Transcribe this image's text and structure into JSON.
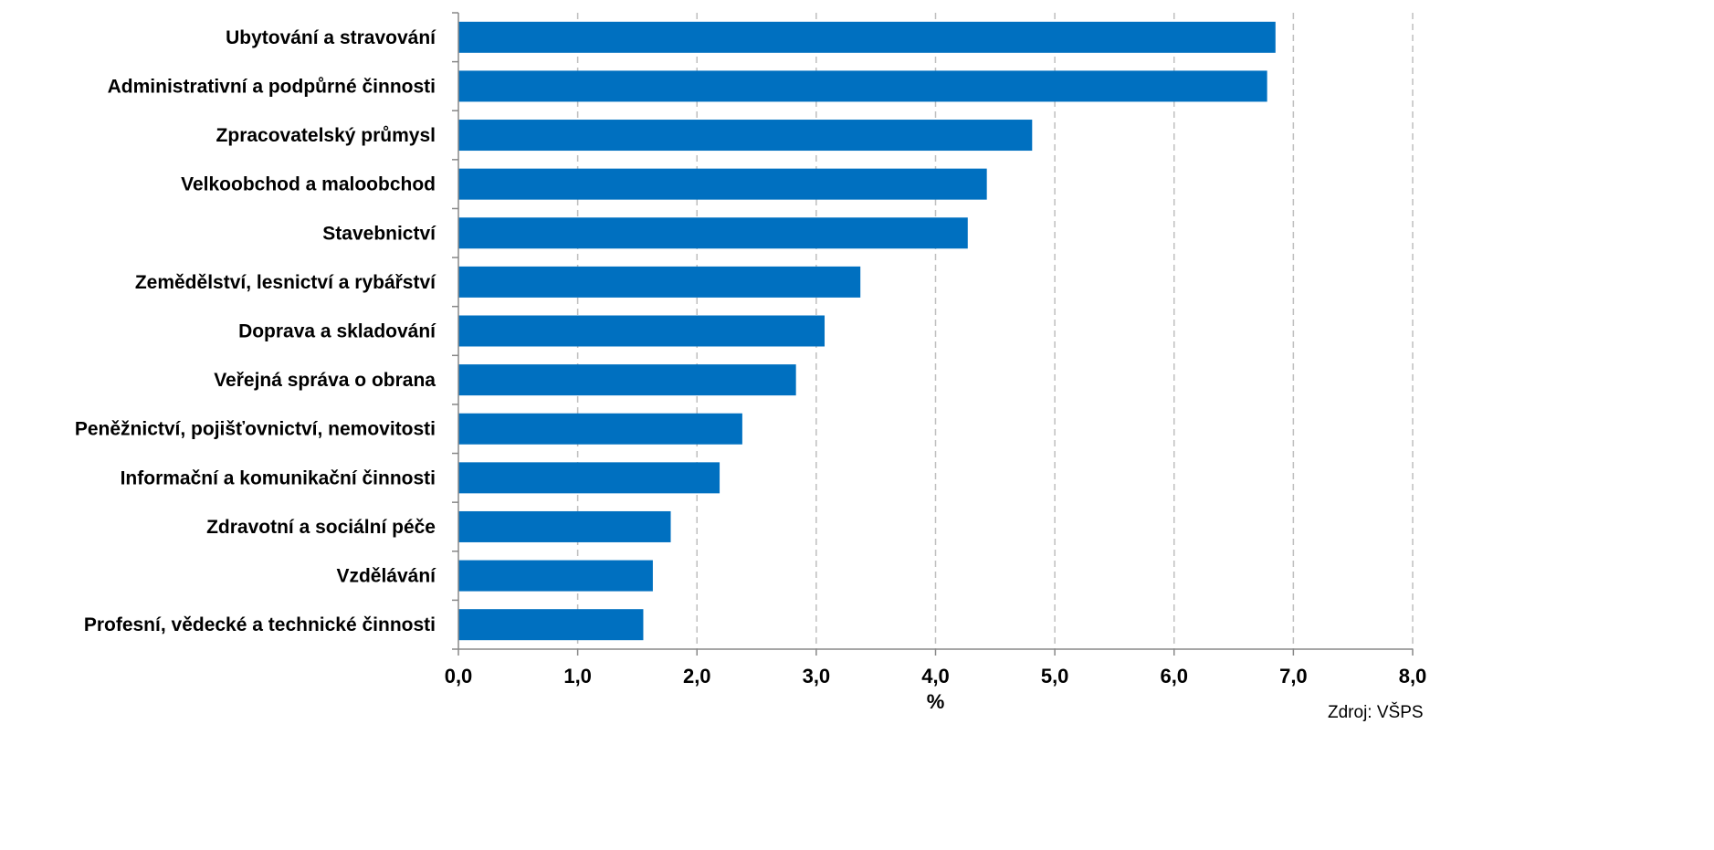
{
  "chart_data": {
    "type": "bar",
    "orientation": "horizontal",
    "categories": [
      "Ubytování a stravování",
      "Administrativní a podpůrné činnosti",
      "Zpracovatelský průmysl",
      "Velkoobchod a maloobchod",
      "Stavebnictví",
      "Zemědělství, lesnictví a rybářství",
      "Doprava a skladování",
      "Veřejná správa o obrana",
      "Peněžnictví,  pojišťovnictví, nemovitosti",
      "Informační a komunikační činnosti",
      "Zdravotní a sociální péče",
      "Vzdělávání",
      "Profesní, vědecké a technické činnosti"
    ],
    "values": [
      6.85,
      6.78,
      4.81,
      4.43,
      4.27,
      3.37,
      3.07,
      2.83,
      2.38,
      2.19,
      1.78,
      1.63,
      1.55
    ],
    "xlabel": "%",
    "xlim": [
      0,
      8
    ],
    "x_ticks": [
      "0,0",
      "1,0",
      "2,0",
      "3,0",
      "4,0",
      "5,0",
      "6,0",
      "7,0",
      "8,0"
    ],
    "grid": "vertical dashed",
    "bar_color": "#0070C0",
    "source_note": "Zdroj: VŠPS"
  }
}
